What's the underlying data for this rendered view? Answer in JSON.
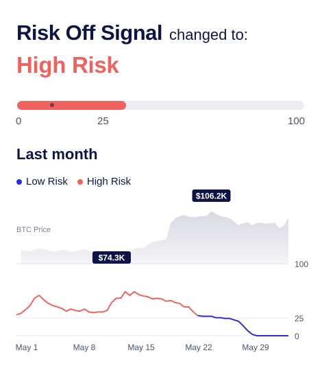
{
  "header": {
    "signal_name": "Risk Off Signal",
    "changed_to": "changed to:",
    "status": "High Risk"
  },
  "gauge": {
    "value": 38,
    "min_label": "0",
    "mid_label": "25",
    "max_label": "100",
    "fill_color": "#f0625f",
    "track_color": "#ecedf3"
  },
  "section": {
    "title": "Last month"
  },
  "legend": {
    "low": {
      "label": "Low Risk",
      "color": "#2b2fd6"
    },
    "high": {
      "label": "High Risk",
      "color": "#f0625f"
    }
  },
  "chart_data": {
    "type": "line",
    "series": [
      {
        "name": "BTC Price",
        "unit": "$",
        "x": [
          1,
          1.5,
          2,
          2.5,
          3,
          3.5,
          4,
          4.5,
          5,
          5.5,
          6,
          6.5,
          7,
          7.5,
          8,
          8.5,
          9,
          9.5,
          10,
          10.5,
          11,
          11.5,
          12,
          12.5,
          13,
          13.5,
          14,
          14.5,
          15,
          15.5,
          16,
          16.5,
          17,
          17.5,
          18,
          18.5,
          19,
          19.5,
          20,
          20.5,
          21,
          21.5,
          22,
          22.5,
          23,
          23.5,
          24,
          24.5,
          25,
          25.5,
          26,
          26.5,
          27,
          27.5,
          28,
          28.5,
          29,
          29.5,
          30,
          30.5
        ],
        "values": [
          80.4,
          79.9,
          79.5,
          80.6,
          81.4,
          81.0,
          80.1,
          79.3,
          79.8,
          80.5,
          80.2,
          79.2,
          79.6,
          80.3,
          81.1,
          80.0,
          79.0,
          78.0,
          77.0,
          75.5,
          74.3,
          75.5,
          77.5,
          78.5,
          79.6,
          81.4,
          82.0,
          81.9,
          83.8,
          85.9,
          86.3,
          86.9,
          87.6,
          98.1,
          101.5,
          103.0,
          103.6,
          102.6,
          102.4,
          102.6,
          103.0,
          103.2,
          106.2,
          104.5,
          103.0,
          102.4,
          101.5,
          99.5,
          97.0,
          98.2,
          99.0,
          96.9,
          98.4,
          98.6,
          98.0,
          98.3,
          98.6,
          95.0,
          96.6,
          101.7
        ],
        "annotations": [
          {
            "label": "$106.2K",
            "x": 22,
            "value": 106.2
          },
          {
            "label": "$74.3K",
            "x": 11,
            "value": 74.3
          }
        ]
      },
      {
        "name": "Risk",
        "x": [
          0.5,
          1,
          1.5,
          2,
          2.5,
          3,
          3.5,
          4,
          4.5,
          5,
          5.5,
          6,
          6.5,
          7,
          7.5,
          8,
          8.5,
          9,
          9.5,
          10,
          10.5,
          11,
          11.5,
          12,
          12.5,
          13,
          13.5,
          14,
          14.5,
          15,
          15.5,
          16,
          16.5,
          17,
          17.5,
          18,
          18.5,
          19,
          19.5,
          20,
          20.5,
          21,
          21.5,
          22,
          22.5,
          23,
          23.5,
          24,
          24.5,
          25,
          25.5,
          26,
          26.5,
          27,
          27.5,
          28,
          28.5,
          29,
          29.5,
          30,
          30.5
        ],
        "values": [
          29,
          31,
          36,
          42,
          52,
          56,
          50,
          45,
          42,
          40,
          38,
          34,
          37,
          35,
          34,
          37,
          33,
          32,
          33,
          33,
          35,
          46,
          52,
          52,
          61,
          56,
          61,
          57,
          55,
          54,
          51,
          52,
          51,
          48,
          49,
          46,
          45,
          40,
          40,
          33,
          28,
          27,
          27,
          27,
          25,
          25,
          24,
          24,
          22,
          20,
          14,
          7,
          2,
          0,
          0,
          0,
          0,
          0,
          0,
          0,
          0
        ],
        "high_risk_until_x": 20.5
      }
    ],
    "x_ticks": [
      "May 1",
      "May 8",
      "May 15",
      "May 22",
      "May 29"
    ],
    "y_ticks": [
      "100",
      "25",
      "0"
    ],
    "price_label": "BTC Price"
  }
}
